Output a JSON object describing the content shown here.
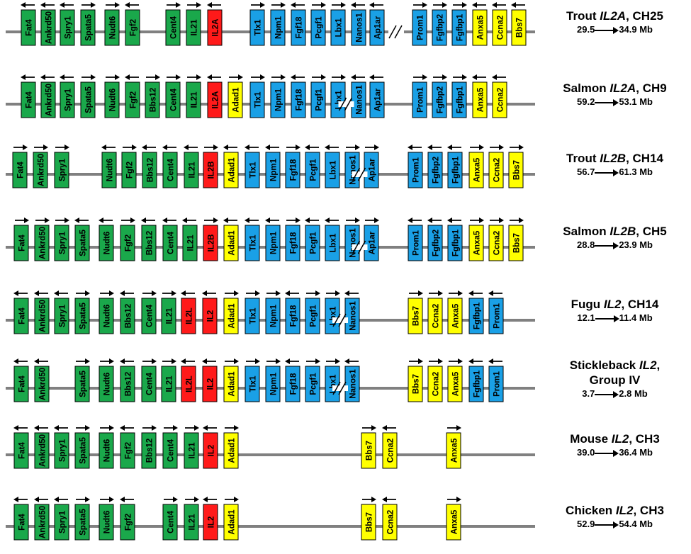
{
  "colors": {
    "green": "#1aa84b",
    "blue": "#1aa0e6",
    "yellow": "#ffff00",
    "red": "#ff1a1a",
    "line": "#808080"
  },
  "rows": [
    {
      "title_plain": "Trout ",
      "title_italic": "IL2A",
      "title_suffix": ", CH25",
      "range_start": "29.5",
      "range_end": "34.9 Mb",
      "break_after_index": 16,
      "genes": [
        {
          "name": "Fat4",
          "color": "green",
          "dir": "left"
        },
        {
          "name": "Ankrd50",
          "color": "green",
          "dir": "left"
        },
        {
          "name": "Spry1",
          "color": "green",
          "dir": "left"
        },
        {
          "name": "Spata5",
          "color": "green",
          "dir": "right"
        },
        {
          "name": "Nudt6",
          "color": "green",
          "dir": "right"
        },
        {
          "name": "Fgf2",
          "color": "green",
          "dir": "left"
        },
        {
          "name": "Cent4",
          "color": "green",
          "dir": "right"
        },
        {
          "name": "IL21",
          "color": "green",
          "dir": "right"
        },
        {
          "name": "IL2A",
          "color": "red",
          "dir": "left"
        },
        {
          "name": "Tlx1",
          "color": "blue",
          "dir": "right"
        },
        {
          "name": "Npm1",
          "color": "blue",
          "dir": "right"
        },
        {
          "name": "Fgf18",
          "color": "blue",
          "dir": "left"
        },
        {
          "name": "Pcgf1",
          "color": "blue",
          "dir": "right"
        },
        {
          "name": "Lbx1",
          "color": "blue",
          "dir": "right"
        },
        {
          "name": "Nanos1",
          "color": "blue",
          "dir": "left"
        },
        {
          "name": "Ap1ar",
          "color": "blue",
          "dir": "left"
        },
        {
          "name": "Prom1",
          "color": "blue",
          "dir": "right"
        },
        {
          "name": "Fgfbp2",
          "color": "blue",
          "dir": "right"
        },
        {
          "name": "Fgfbp1",
          "color": "blue",
          "dir": "right"
        },
        {
          "name": "Anxa5",
          "color": "yellow",
          "dir": "left"
        },
        {
          "name": "Ccna2",
          "color": "yellow",
          "dir": "left"
        },
        {
          "name": "Bbs7",
          "color": "yellow",
          "dir": "left"
        }
      ]
    },
    {
      "title_plain": "Salmon ",
      "title_italic": "IL2A",
      "title_suffix": ", CH9",
      "range_start": "59.2",
      "range_end": "53.1 Mb",
      "break_after_index": 16,
      "genes": [
        {
          "name": "Fat4",
          "color": "green",
          "dir": "left"
        },
        {
          "name": "Ankrd50",
          "color": "green",
          "dir": "left"
        },
        {
          "name": "Spry1",
          "color": "green",
          "dir": "left"
        },
        {
          "name": "Spata5",
          "color": "green",
          "dir": "right"
        },
        {
          "name": "Nudt6",
          "color": "green",
          "dir": "right"
        },
        {
          "name": "Fgf2",
          "color": "green",
          "dir": "left"
        },
        {
          "name": "Bbs12",
          "color": "green",
          "dir": "right"
        },
        {
          "name": "Cent4",
          "color": "green",
          "dir": "right"
        },
        {
          "name": "IL21",
          "color": "green",
          "dir": "right"
        },
        {
          "name": "IL2A",
          "color": "red",
          "dir": "left"
        },
        {
          "name": "Adad1",
          "color": "yellow",
          "dir": "right"
        },
        {
          "name": "Tlx1",
          "color": "blue",
          "dir": "right"
        },
        {
          "name": "Npm1",
          "color": "blue",
          "dir": "right"
        },
        {
          "name": "Fgf18",
          "color": "blue",
          "dir": "left"
        },
        {
          "name": "Pcgf1",
          "color": "blue",
          "dir": "right"
        },
        {
          "name": "Lbx1",
          "color": "blue",
          "dir": "right"
        },
        {
          "name": "Nanos1",
          "color": "blue",
          "dir": "left"
        },
        {
          "name": "Ap1ar",
          "color": "blue",
          "dir": "left"
        },
        {
          "name": "Prom1",
          "color": "blue",
          "dir": "right"
        },
        {
          "name": "Fgfbp2",
          "color": "blue",
          "dir": "right"
        },
        {
          "name": "Fgfbp1",
          "color": "blue",
          "dir": "right"
        },
        {
          "name": "Anxa5",
          "color": "yellow",
          "dir": "left"
        },
        {
          "name": "Ccna2",
          "color": "yellow",
          "dir": "left"
        }
      ]
    },
    {
      "title_plain": "Trout ",
      "title_italic": "IL2B",
      "title_suffix": ", CH14",
      "range_start": "56.7",
      "range_end": "61.3 Mb",
      "break_after_index": 16,
      "genes": [
        {
          "name": "Fat4",
          "color": "green",
          "dir": "right"
        },
        {
          "name": "Ankrd50",
          "color": "green",
          "dir": "right"
        },
        {
          "name": "Spry1",
          "color": "green",
          "dir": "right"
        },
        {
          "name": "Nudt6",
          "color": "green",
          "dir": "left"
        },
        {
          "name": "Fgf2",
          "color": "green",
          "dir": "right"
        },
        {
          "name": "Bbs12",
          "color": "green",
          "dir": "left"
        },
        {
          "name": "Cent4",
          "color": "green",
          "dir": "left"
        },
        {
          "name": "IL21",
          "color": "green",
          "dir": "left"
        },
        {
          "name": "IL2B",
          "color": "red",
          "dir": "right"
        },
        {
          "name": "Adad1",
          "color": "yellow",
          "dir": "left"
        },
        {
          "name": "Tlx1",
          "color": "blue",
          "dir": "left"
        },
        {
          "name": "Npm1",
          "color": "blue",
          "dir": "left"
        },
        {
          "name": "Fgf18",
          "color": "blue",
          "dir": "right"
        },
        {
          "name": "Pcgf1",
          "color": "blue",
          "dir": "left"
        },
        {
          "name": "Lbx1",
          "color": "blue",
          "dir": "left"
        },
        {
          "name": "Nanos1",
          "color": "blue",
          "dir": "right"
        },
        {
          "name": "Ap1ar",
          "color": "blue",
          "dir": "right"
        },
        {
          "name": "Prom1",
          "color": "blue",
          "dir": "left"
        },
        {
          "name": "Fgfbp2",
          "color": "blue",
          "dir": "left"
        },
        {
          "name": "Fgfbp1",
          "color": "blue",
          "dir": "left"
        },
        {
          "name": "Anxa5",
          "color": "yellow",
          "dir": "right"
        },
        {
          "name": "Ccna2",
          "color": "yellow",
          "dir": "right"
        },
        {
          "name": "Bbs7",
          "color": "yellow",
          "dir": "right"
        }
      ]
    },
    {
      "title_plain": "Salmon ",
      "title_italic": "IL2B",
      "title_suffix": ", CH5",
      "range_start": "28.8",
      "range_end": "23.9 Mb",
      "break_after_index": 17,
      "genes": [
        {
          "name": "Fat4",
          "color": "green",
          "dir": "right"
        },
        {
          "name": "Ankrd50",
          "color": "green",
          "dir": "right"
        },
        {
          "name": "Spry1",
          "color": "green",
          "dir": "right"
        },
        {
          "name": "Spata5",
          "color": "green",
          "dir": "left"
        },
        {
          "name": "Nudt6",
          "color": "green",
          "dir": "left"
        },
        {
          "name": "Fgf2",
          "color": "green",
          "dir": "right"
        },
        {
          "name": "Bbs12",
          "color": "green",
          "dir": "left"
        },
        {
          "name": "Cent4",
          "color": "green",
          "dir": "left"
        },
        {
          "name": "IL21",
          "color": "green",
          "dir": "left"
        },
        {
          "name": "IL2B",
          "color": "red",
          "dir": "right"
        },
        {
          "name": "Adad1",
          "color": "yellow",
          "dir": "left"
        },
        {
          "name": "Tlx1",
          "color": "blue",
          "dir": "left"
        },
        {
          "name": "Npm1",
          "color": "blue",
          "dir": "left"
        },
        {
          "name": "Fgf18",
          "color": "blue",
          "dir": "right"
        },
        {
          "name": "Pcgf1",
          "color": "blue",
          "dir": "left"
        },
        {
          "name": "Lbx1",
          "color": "blue",
          "dir": "left"
        },
        {
          "name": "Nanos1",
          "color": "blue",
          "dir": "right"
        },
        {
          "name": "Ap1ar",
          "color": "blue",
          "dir": "right"
        },
        {
          "name": "Prom1",
          "color": "blue",
          "dir": "left"
        },
        {
          "name": "Fgfbp2",
          "color": "blue",
          "dir": "left"
        },
        {
          "name": "Fgfbp1",
          "color": "blue",
          "dir": "left"
        },
        {
          "name": "Anxa5",
          "color": "yellow",
          "dir": "right"
        },
        {
          "name": "Ccna2",
          "color": "yellow",
          "dir": "right"
        },
        {
          "name": "Bbs7",
          "color": "yellow",
          "dir": "right"
        }
      ]
    },
    {
      "title_plain": "Fugu ",
      "title_italic": "IL2",
      "title_suffix": ", CH14",
      "range_start": "12.1",
      "range_end": "11.4 Mb",
      "break_after_index": 16,
      "genes": [
        {
          "name": "Fat4",
          "color": "green",
          "dir": "left"
        },
        {
          "name": "Ankrd50",
          "color": "green",
          "dir": "left"
        },
        {
          "name": "Spry1",
          "color": "green",
          "dir": "left"
        },
        {
          "name": "Spata5",
          "color": "green",
          "dir": "right"
        },
        {
          "name": "Nudt6",
          "color": "green",
          "dir": "right"
        },
        {
          "name": "Bbs12",
          "color": "green",
          "dir": "left"
        },
        {
          "name": "Cent4",
          "color": "green",
          "dir": "right"
        },
        {
          "name": "IL21",
          "color": "green",
          "dir": "right"
        },
        {
          "name": "IL2L",
          "color": "red",
          "dir": "left"
        },
        {
          "name": "IL2",
          "color": "red",
          "dir": "left"
        },
        {
          "name": "Adad1",
          "color": "yellow",
          "dir": "right"
        },
        {
          "name": "Tlx1",
          "color": "blue",
          "dir": "right"
        },
        {
          "name": "Npm1",
          "color": "blue",
          "dir": "right"
        },
        {
          "name": "Fgf18",
          "color": "blue",
          "dir": "left"
        },
        {
          "name": "Pcgf1",
          "color": "blue",
          "dir": "right"
        },
        {
          "name": "Lbx1",
          "color": "blue",
          "dir": "right"
        },
        {
          "name": "Nanos1",
          "color": "blue",
          "dir": "left"
        },
        {
          "name": "Bbs7",
          "color": "yellow",
          "dir": "right"
        },
        {
          "name": "Ccna2",
          "color": "yellow",
          "dir": "right"
        },
        {
          "name": "Anxa5",
          "color": "yellow",
          "dir": "right"
        },
        {
          "name": "Fgfbp1",
          "color": "blue",
          "dir": "left"
        },
        {
          "name": "Prom1",
          "color": "blue",
          "dir": "left"
        }
      ]
    },
    {
      "title_plain": "Stickleback ",
      "title_italic": "IL2",
      "title_suffix": ",",
      "title_line2": "Group IV",
      "range_start": "3.7",
      "range_end": "2.8 Mb",
      "break_after_index": 15,
      "genes": [
        {
          "name": "Fat4",
          "color": "green",
          "dir": "left"
        },
        {
          "name": "Ankrd50",
          "color": "green",
          "dir": "left"
        },
        {
          "name": "Spata5",
          "color": "green",
          "dir": "right"
        },
        {
          "name": "Nudt6",
          "color": "green",
          "dir": "right"
        },
        {
          "name": "Bbs12",
          "color": "green",
          "dir": "left"
        },
        {
          "name": "Cent4",
          "color": "green",
          "dir": "right"
        },
        {
          "name": "IL21",
          "color": "green",
          "dir": "right"
        },
        {
          "name": "IL2L",
          "color": "red",
          "dir": "left"
        },
        {
          "name": "IL2",
          "color": "red",
          "dir": "left"
        },
        {
          "name": "Adad1",
          "color": "yellow",
          "dir": "right"
        },
        {
          "name": "Tlx1",
          "color": "blue",
          "dir": "right"
        },
        {
          "name": "Npm1",
          "color": "blue",
          "dir": "right"
        },
        {
          "name": "Fgf18",
          "color": "blue",
          "dir": "left"
        },
        {
          "name": "Pcgf1",
          "color": "blue",
          "dir": "right"
        },
        {
          "name": "Lbx1",
          "color": "blue",
          "dir": "right"
        },
        {
          "name": "Nanos1",
          "color": "blue",
          "dir": "left"
        },
        {
          "name": "Bbs7",
          "color": "yellow",
          "dir": "right"
        },
        {
          "name": "Ccna2",
          "color": "yellow",
          "dir": "right"
        },
        {
          "name": "Anxa5",
          "color": "yellow",
          "dir": "right"
        },
        {
          "name": "Fgfbp1",
          "color": "blue",
          "dir": "left"
        },
        {
          "name": "Prom1",
          "color": "blue",
          "dir": "left"
        }
      ]
    },
    {
      "title_plain": "Mouse ",
      "title_italic": "IL2",
      "title_suffix": ", CH3",
      "range_start": "39.0",
      "range_end": "36.4 Mb",
      "genes": [
        {
          "name": "Fat4",
          "color": "green",
          "dir": "left"
        },
        {
          "name": "Ankrd50",
          "color": "green",
          "dir": "left"
        },
        {
          "name": "Spry1",
          "color": "green",
          "dir": "left"
        },
        {
          "name": "Spata5",
          "color": "green",
          "dir": "right"
        },
        {
          "name": "Nudt6",
          "color": "green",
          "dir": "right"
        },
        {
          "name": "Fgf2",
          "color": "green",
          "dir": "left"
        },
        {
          "name": "Bbs12",
          "color": "green",
          "dir": "right"
        },
        {
          "name": "Cent4",
          "color": "green",
          "dir": "right"
        },
        {
          "name": "IL21",
          "color": "green",
          "dir": "right"
        },
        {
          "name": "IL2",
          "color": "red",
          "dir": "left"
        },
        {
          "name": "Adad1",
          "color": "yellow",
          "dir": "right"
        },
        {
          "name": "Bbs7",
          "color": "yellow",
          "dir": "right"
        },
        {
          "name": "Ccna2",
          "color": "yellow",
          "dir": "left"
        },
        {
          "name": "Anxa5",
          "color": "yellow",
          "dir": "right"
        }
      ]
    },
    {
      "title_plain": "Chicken ",
      "title_italic": "IL2",
      "title_suffix": ", CH3",
      "range_start": "52.9",
      "range_end": "54.4 Mb",
      "genes": [
        {
          "name": "Fat4",
          "color": "green",
          "dir": "left"
        },
        {
          "name": "Ankrd50",
          "color": "green",
          "dir": "left"
        },
        {
          "name": "Spry1",
          "color": "green",
          "dir": "left"
        },
        {
          "name": "Spata5",
          "color": "green",
          "dir": "right"
        },
        {
          "name": "Nudt6",
          "color": "green",
          "dir": "right"
        },
        {
          "name": "Fgf2",
          "color": "green",
          "dir": "left"
        },
        {
          "name": "Cent4",
          "color": "green",
          "dir": "right"
        },
        {
          "name": "IL21",
          "color": "green",
          "dir": "right"
        },
        {
          "name": "IL2",
          "color": "red",
          "dir": "left"
        },
        {
          "name": "Adad1",
          "color": "yellow",
          "dir": "right"
        },
        {
          "name": "Bbs7",
          "color": "yellow",
          "dir": "right"
        },
        {
          "name": "Ccna2",
          "color": "yellow",
          "dir": "left"
        },
        {
          "name": "Anxa5",
          "color": "yellow",
          "dir": "right"
        }
      ]
    }
  ]
}
